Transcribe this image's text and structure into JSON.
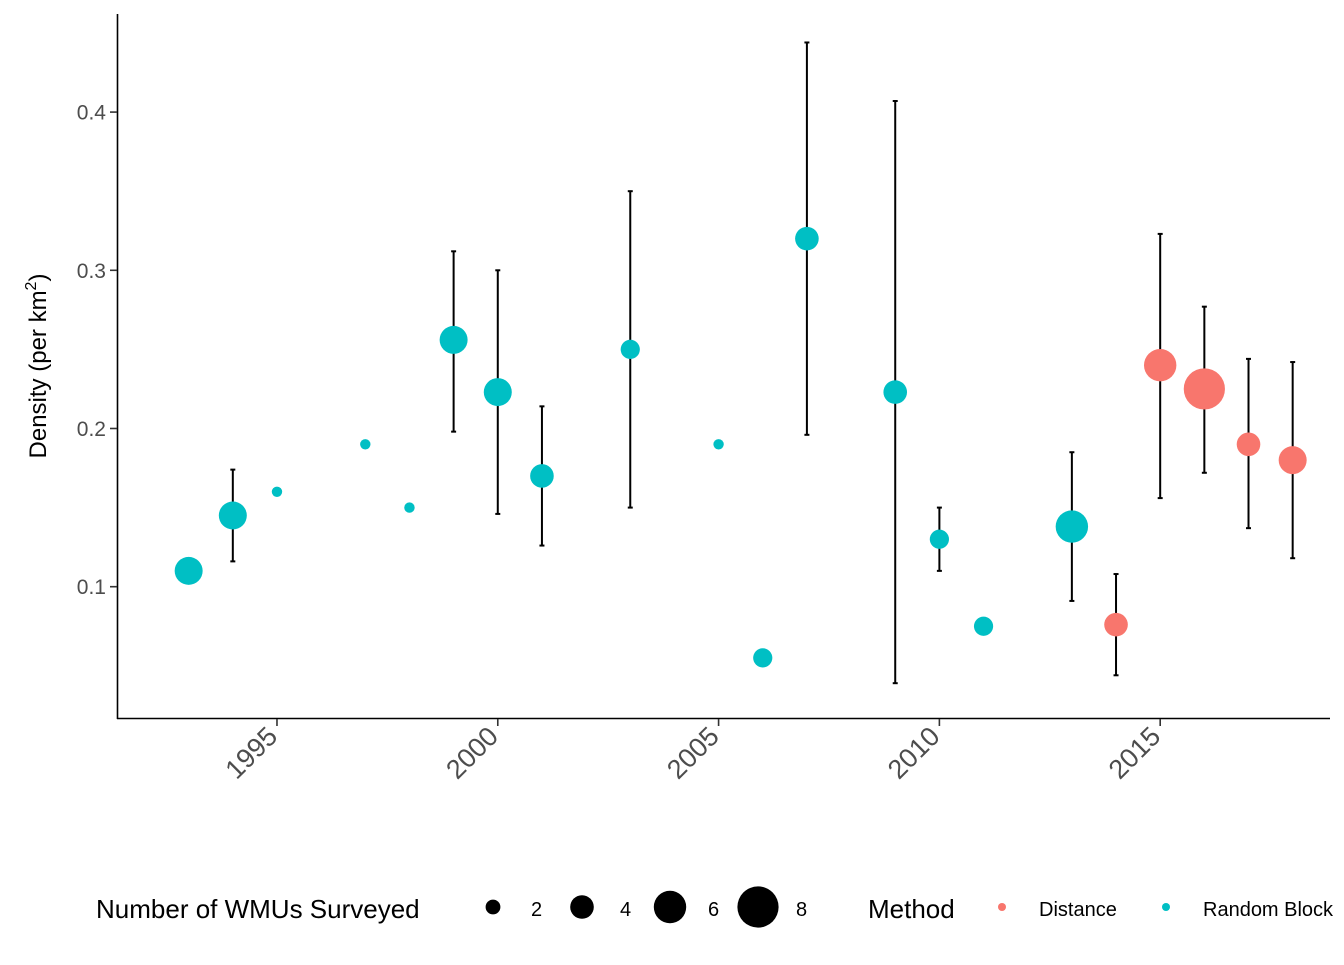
{
  "chart_data": {
    "type": "scatter",
    "title": "",
    "xlabel": "",
    "ylabel": {
      "prefix": "Density (per km",
      "superscript": "2",
      "suffix": ")"
    },
    "xlim": [
      1991.4,
      2018.8
    ],
    "ylim": [
      0.017,
      0.462
    ],
    "x_ticks": [
      "1995",
      "2000",
      "2005",
      "2010",
      "2015"
    ],
    "y_ticks": [
      "0.1",
      "0.2",
      "0.3",
      "0.4"
    ],
    "grid": false,
    "legend_position": "bottom",
    "colors": {
      "Distance": "#F8766D",
      "Random Block": "#00BFC4",
      "errorbar": "#000000",
      "axis": "#000000"
    },
    "size_legend": {
      "title": "Number of WMUs Surveyed",
      "values": [
        2,
        4,
        6,
        8
      ]
    },
    "color_legend": {
      "title": "Method",
      "entries": [
        "Distance",
        "Random Block"
      ]
    },
    "points": [
      {
        "year": 1993,
        "density": 0.11,
        "lower": null,
        "upper": null,
        "wmus": 5,
        "method": "Random Block"
      },
      {
        "year": 1994,
        "density": 0.145,
        "lower": 0.116,
        "upper": 0.174,
        "wmus": 5,
        "method": "Random Block"
      },
      {
        "year": 1995,
        "density": 0.16,
        "lower": null,
        "upper": null,
        "wmus": 1,
        "method": "Random Block"
      },
      {
        "year": 1997,
        "density": 0.19,
        "lower": null,
        "upper": null,
        "wmus": 1,
        "method": "Random Block"
      },
      {
        "year": 1998,
        "density": 0.15,
        "lower": null,
        "upper": null,
        "wmus": 1,
        "method": "Random Block"
      },
      {
        "year": 1999,
        "density": 0.256,
        "lower": 0.198,
        "upper": 0.312,
        "wmus": 5,
        "method": "Random Block"
      },
      {
        "year": 2000,
        "density": 0.223,
        "lower": 0.146,
        "upper": 0.3,
        "wmus": 5,
        "method": "Random Block"
      },
      {
        "year": 2001,
        "density": 0.17,
        "lower": 0.126,
        "upper": 0.214,
        "wmus": 4,
        "method": "Random Block"
      },
      {
        "year": 2003,
        "density": 0.25,
        "lower": 0.15,
        "upper": 0.35,
        "wmus": 3,
        "method": "Random Block"
      },
      {
        "year": 2005,
        "density": 0.19,
        "lower": null,
        "upper": null,
        "wmus": 1,
        "method": "Random Block"
      },
      {
        "year": 2006,
        "density": 0.055,
        "lower": null,
        "upper": null,
        "wmus": 3,
        "method": "Random Block"
      },
      {
        "year": 2007,
        "density": 0.32,
        "lower": 0.196,
        "upper": 0.444,
        "wmus": 4,
        "method": "Random Block"
      },
      {
        "year": 2009,
        "density": 0.223,
        "lower": 0.039,
        "upper": 0.407,
        "wmus": 4,
        "method": "Random Block"
      },
      {
        "year": 2010,
        "density": 0.13,
        "lower": 0.11,
        "upper": 0.15,
        "wmus": 3,
        "method": "Random Block"
      },
      {
        "year": 2011,
        "density": 0.075,
        "lower": null,
        "upper": null,
        "wmus": 3,
        "method": "Random Block"
      },
      {
        "year": 2013,
        "density": 0.138,
        "lower": 0.091,
        "upper": 0.185,
        "wmus": 6,
        "method": "Random Block"
      },
      {
        "year": 2014,
        "density": 0.076,
        "lower": 0.044,
        "upper": 0.108,
        "wmus": 4,
        "method": "Distance"
      },
      {
        "year": 2015,
        "density": 0.24,
        "lower": 0.156,
        "upper": 0.323,
        "wmus": 6,
        "method": "Distance"
      },
      {
        "year": 2016,
        "density": 0.225,
        "lower": 0.172,
        "upper": 0.277,
        "wmus": 8,
        "method": "Distance"
      },
      {
        "year": 2017,
        "density": 0.19,
        "lower": 0.137,
        "upper": 0.244,
        "wmus": 4,
        "method": "Distance"
      },
      {
        "year": 2018,
        "density": 0.18,
        "lower": 0.118,
        "upper": 0.242,
        "wmus": 5,
        "method": "Distance"
      }
    ]
  }
}
